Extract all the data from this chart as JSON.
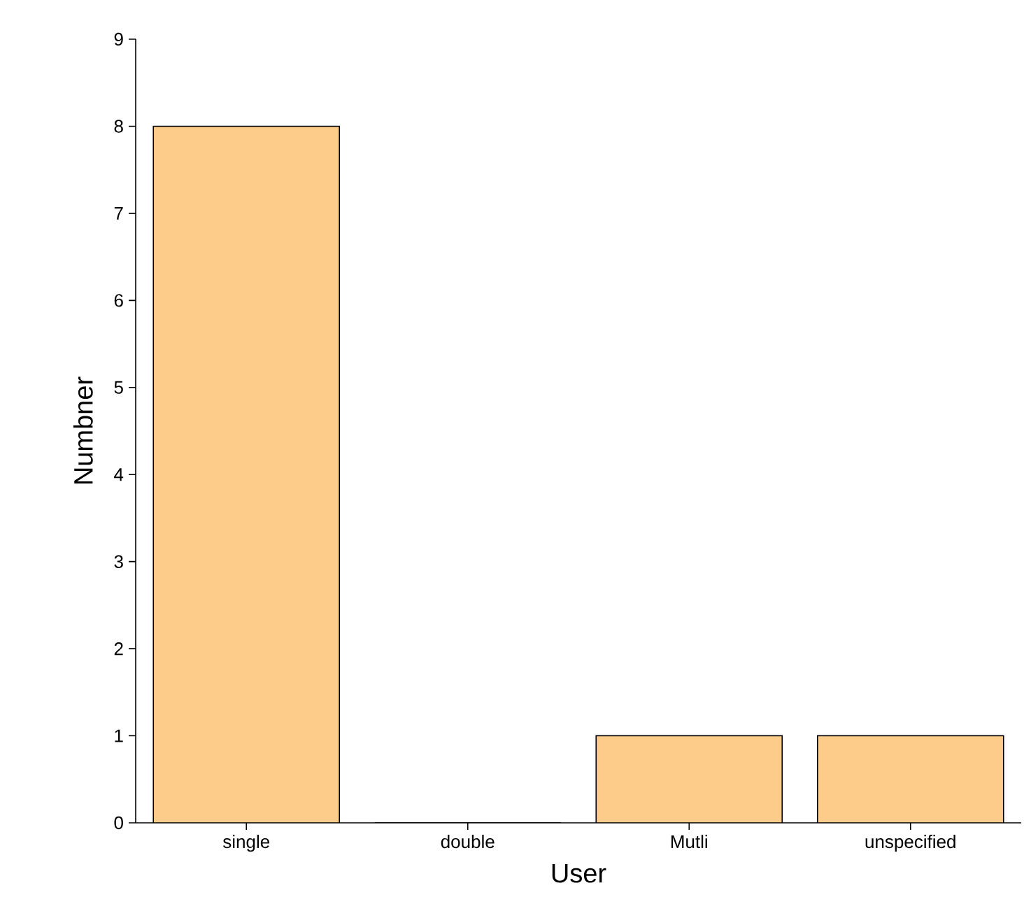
{
  "chart_data": {
    "type": "bar",
    "xlabel": "User",
    "ylabel": "Numbner",
    "categories": [
      "single",
      "double",
      "Mutli",
      "unspecified"
    ],
    "values": [
      8,
      0,
      1,
      1
    ],
    "color": "#fdcc8a",
    "ylim": [
      0,
      9
    ],
    "yticks": [
      0,
      1,
      2,
      3,
      4,
      5,
      6,
      7,
      8,
      9
    ]
  }
}
